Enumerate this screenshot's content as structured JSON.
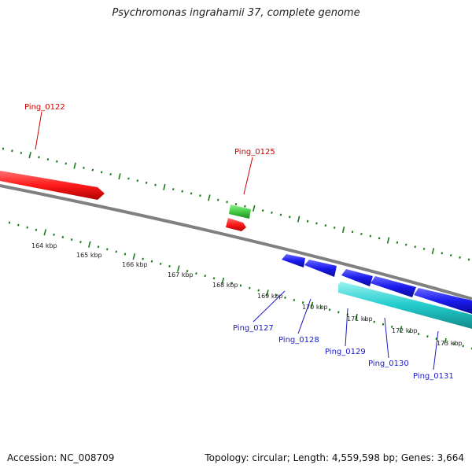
{
  "title": "Psychromonas ingrahamii 37, complete genome",
  "footer": {
    "accession": "Accession: NC_008709",
    "topology": "Topology: circular; Length: 4,559,598 bp; Genes: 3,664"
  },
  "colors": {
    "backbone": "#808080",
    "tick": "#1a7a1a",
    "feature_red": "#ff1a1a",
    "feature_green": "#44cc44",
    "feature_blue": "#1a1aee",
    "feature_cyan": "#22cccc",
    "label_red": "#cc0000",
    "label_blue": "#1a1acc"
  },
  "scale_labels": [
    "164 kbp",
    "165 kbp",
    "166 kbp",
    "167 kbp",
    "168 kbp",
    "169 kbp",
    "170 kbp",
    "171 kbp",
    "172 kbp",
    "173 kbp"
  ],
  "gene_labels": [
    {
      "name": "Ping_0122",
      "color": "red"
    },
    {
      "name": "Ping_0125",
      "color": "red"
    },
    {
      "name": "Ping_0127",
      "color": "blue"
    },
    {
      "name": "Ping_0128",
      "color": "blue"
    },
    {
      "name": "Ping_0129",
      "color": "blue"
    },
    {
      "name": "Ping_0130",
      "color": "blue"
    },
    {
      "name": "Ping_0131",
      "color": "blue"
    }
  ]
}
